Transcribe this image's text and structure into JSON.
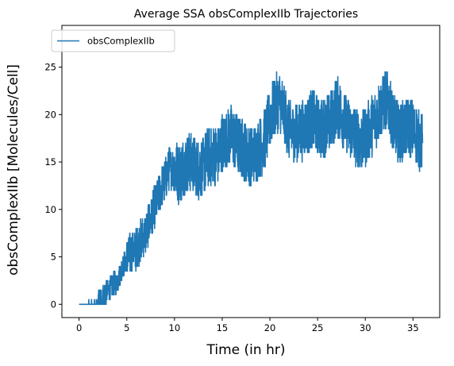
{
  "chart_data": {
    "type": "line",
    "title": "Average SSA obsComplexIIb Trajectories",
    "xlabel": "Time (in hr)",
    "ylabel": "obsComplexIIb [Molecules/Cell]",
    "xlim": [
      -1.8,
      37.8
    ],
    "ylim": [
      -1.4,
      29.4
    ],
    "xticks": [
      0,
      5,
      10,
      15,
      20,
      25,
      30,
      35
    ],
    "yticks": [
      0,
      5,
      10,
      15,
      20,
      25
    ],
    "grid": false,
    "legend": {
      "position": "upper-left",
      "entries": [
        "obsComplexIIb"
      ]
    },
    "series": [
      {
        "name": "obsComplexIIb",
        "color": "#1f77b4",
        "x": [
          0,
          0.5,
          1,
          1.5,
          2,
          2.5,
          3,
          3.5,
          4,
          4.5,
          5,
          5.5,
          6,
          6.5,
          7,
          7.5,
          8,
          8.5,
          9,
          9.5,
          10,
          10.5,
          11,
          11.5,
          12,
          12.5,
          13,
          13.5,
          14,
          14.5,
          15,
          15.5,
          16,
          16.5,
          17,
          17.5,
          18,
          18.5,
          19,
          19.5,
          20,
          20.5,
          21,
          21.5,
          22,
          22.5,
          23,
          23.5,
          24,
          24.5,
          25,
          25.5,
          26,
          26.5,
          27,
          27.5,
          28,
          28.5,
          29,
          29.5,
          30,
          30.5,
          31,
          31.5,
          32,
          32.5,
          33,
          33.5,
          34,
          34.5,
          35,
          35.5,
          36
        ],
        "y": [
          0,
          0,
          0,
          0,
          0.3,
          0.8,
          1.5,
          2,
          2.3,
          3.8,
          4.8,
          5.5,
          5.8,
          6.8,
          7.5,
          9,
          10.5,
          12,
          13,
          14.5,
          14.3,
          13.8,
          14.5,
          15,
          14.8,
          14.2,
          14.5,
          15.5,
          15.8,
          15.5,
          17,
          17.5,
          17.8,
          17,
          16.5,
          16,
          15.5,
          16,
          16.5,
          17.5,
          19.5,
          21,
          21.5,
          20,
          18.5,
          18,
          18.2,
          18.5,
          19,
          19.5,
          18.8,
          18.5,
          19,
          19.5,
          21,
          20,
          19,
          18.2,
          17.8,
          17.2,
          17.5,
          18.5,
          19.5,
          20.5,
          21.5,
          21,
          19,
          18,
          18.2,
          18.8,
          18.5,
          17.5,
          17
        ]
      }
    ]
  }
}
